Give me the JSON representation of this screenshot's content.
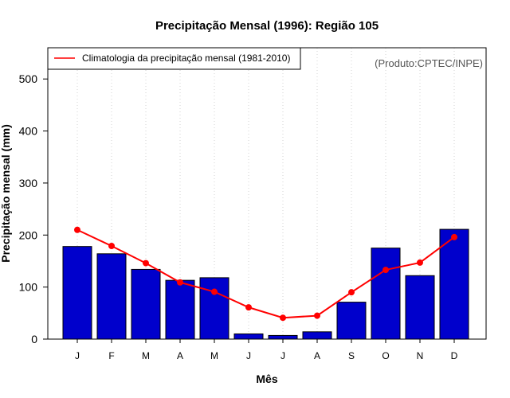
{
  "chart_data": {
    "type": "bar",
    "title": "Precipitação Mensal (1996): Região 105",
    "xlabel": "Mês",
    "ylabel": "Precipitação mensal (mm)",
    "ylim": [
      0,
      560
    ],
    "yticks": [
      0,
      100,
      200,
      300,
      400,
      500
    ],
    "grid": "vertical dotted",
    "categories": [
      "J",
      "F",
      "M",
      "A",
      "M",
      "J",
      "J",
      "A",
      "S",
      "O",
      "N",
      "D"
    ],
    "series": [
      {
        "name": "Precipitação mensal (1996)",
        "type": "bar",
        "color": "#0000CC",
        "values": [
          178,
          164,
          134,
          113,
          118,
          10,
          7,
          14,
          71,
          175,
          122,
          211
        ]
      },
      {
        "name": "Climatologia da precipitação mensal (1981-2010)",
        "type": "line",
        "color": "#FF0000",
        "values": [
          210,
          179,
          146,
          109,
          91,
          61,
          41,
          45,
          90,
          133,
          147,
          196
        ]
      }
    ],
    "legend": {
      "position": "top-left",
      "label": "Climatologia da precipitação mensal (1981-2010)"
    },
    "annotation": "(Produto:CPTEC/INPE)"
  }
}
